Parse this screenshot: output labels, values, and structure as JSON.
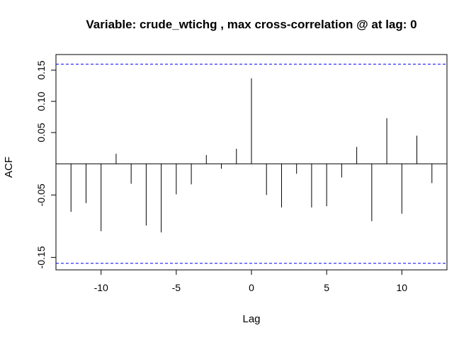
{
  "chart_data": {
    "type": "bar",
    "title": "Variable: crude_wtichg , max cross-correlation @ at lag: 0",
    "xlabel": "Lag",
    "ylabel": "ACF",
    "xlim": [
      -13,
      13
    ],
    "ylim": [
      -0.17,
      0.175
    ],
    "xticks": [
      -10,
      -5,
      0,
      5,
      10
    ],
    "yticks": [
      -0.15,
      -0.05,
      0.05,
      0.1,
      0.15
    ],
    "ytick_labels": [
      "-0.15",
      "-0.05",
      "0.05",
      "0.10",
      "0.15"
    ],
    "confidence_bound": 0.1595,
    "lags": [
      -12,
      -11,
      -10,
      -9,
      -8,
      -7,
      -6,
      -5,
      -4,
      -3,
      -2,
      -1,
      0,
      1,
      2,
      3,
      4,
      5,
      6,
      7,
      8,
      9,
      10,
      11,
      12
    ],
    "values": [
      -0.077,
      -0.063,
      -0.108,
      0.016,
      -0.032,
      -0.099,
      -0.11,
      -0.049,
      -0.033,
      0.014,
      -0.008,
      0.024,
      0.137,
      -0.05,
      -0.07,
      -0.016,
      -0.07,
      -0.068,
      -0.022,
      0.027,
      -0.092,
      0.073,
      -0.08,
      0.045,
      -0.031
    ],
    "grid": false,
    "colors": {
      "bars": "#000000",
      "bounds": "#0000ff",
      "zero_line": "#000000"
    }
  }
}
